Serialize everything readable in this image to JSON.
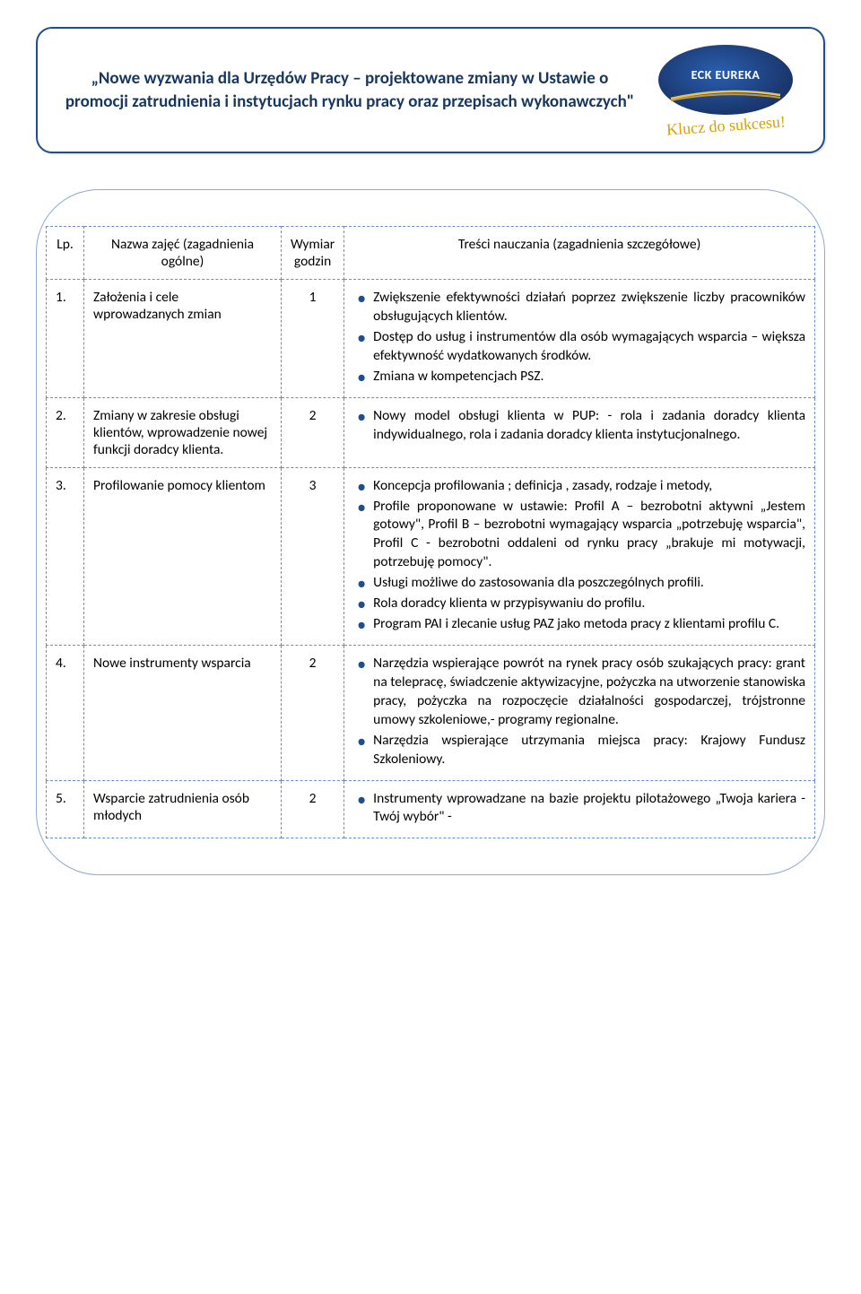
{
  "header": {
    "title": "„Nowe wyzwania dla Urzędów Pracy – projektowane zmiany w Ustawie o promocji zatrudnienia i instytucjach rynku pracy oraz przepisach wykonawczych\"",
    "logo_text": "ECK EUREKA",
    "tagline": "Klucz do sukcesu!",
    "logo_bg_inner": "#2a5fb0",
    "logo_bg_outer": "#122752",
    "swoosh_color_top": "#e8c35a",
    "swoosh_color_bot": "#c79a2c",
    "tagline_color": "#d6a300",
    "border_color": "#1f4e8c"
  },
  "table": {
    "headers": {
      "lp": "Lp.",
      "name": "Nazwa zajęć (zagadnienia ogólne)",
      "hours": "Wymiar godzin",
      "content": "Treści nauczania (zagadnienia szczegółowe)"
    },
    "rows": [
      {
        "lp": "1.",
        "name": "Założenia i cele wprowadzanych zmian",
        "hours": "1",
        "bullets": [
          "Zwiększenie efektywności działań poprzez zwiększenie liczby pracowników obsługujących klientów.",
          "Dostęp do usług i instrumentów dla osób wymagających wsparcia – większa efektywność wydatkowanych środków.",
          "Zmiana w kompetencjach PSZ."
        ]
      },
      {
        "lp": "2.",
        "name": "Zmiany w zakresie obsługi klientów, wprowadzenie nowej funkcji doradcy klienta.",
        "hours": "2",
        "bullets": [
          "Nowy model obsługi klienta w PUP: - rola i zadania doradcy klienta indywidualnego, rola i zadania doradcy klienta instytucjonalnego."
        ]
      },
      {
        "lp": "3.",
        "name": "Profilowanie pomocy klientom",
        "hours": "3",
        "bullets": [
          "Koncepcja profilowania ; definicja , zasady, rodzaje  i metody,",
          "Profile proponowane w ustawie: Profil A – bezrobotni aktywni „Jestem gotowy\", Profil B – bezrobotni wymagający wsparcia „potrzebuję wsparcia\", Profil C - bezrobotni oddaleni od rynku pracy „brakuje mi motywacji, potrzebuję pomocy\".",
          "Usługi możliwe do zastosowania dla poszczególnych profili.",
          "Rola doradcy klienta w przypisywaniu do profilu.",
          "Program PAI i zlecanie usług PAZ jako metoda pracy z klientami profilu C."
        ]
      },
      {
        "lp": "4.",
        "name": "Nowe instrumenty wsparcia",
        "hours": "2",
        "bullets": [
          "Narzędzia wspierające powrót na rynek pracy osób szukających pracy: grant na telepracę, świadczenie aktywizacyjne, pożyczka na utworzenie stanowiska pracy,  pożyczka na rozpoczęcie działalności gospodarczej, trójstronne umowy szkoleniowe,- programy regionalne.",
          "Narzędzia wspierające utrzymania miejsca pracy: Krajowy Fundusz Szkoleniowy."
        ]
      },
      {
        "lp": "5.",
        "name": "Wsparcie zatrudnienia osób młodych",
        "hours": "2",
        "bullets": [
          "Instrumenty wprowadzane na bazie projektu pilotażowego „Twoja kariera - Twój wybór\"  -"
        ]
      }
    ]
  }
}
